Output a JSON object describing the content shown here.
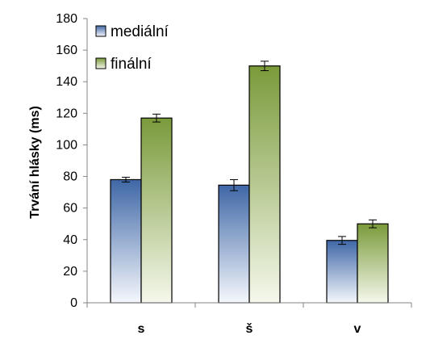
{
  "chart_data": {
    "type": "bar",
    "title": "",
    "xlabel": "",
    "ylabel": "Trvání hlásky (ms)",
    "ylim": [
      0,
      180
    ],
    "yticks": [
      0,
      20,
      40,
      60,
      80,
      100,
      120,
      140,
      160,
      180
    ],
    "categories": [
      "s",
      "š",
      "v"
    ],
    "series": [
      {
        "name": "mediální",
        "values": [
          78,
          74.5,
          39.5
        ],
        "errors": [
          1.5,
          3.5,
          2.5
        ]
      },
      {
        "name": "finální",
        "values": [
          117,
          150,
          50
        ],
        "errors": [
          2.5,
          3,
          2.5
        ]
      }
    ],
    "error_bars": true,
    "grid": false,
    "legend_position": "top-left",
    "colors": {
      "mediální": {
        "top": "#3F67A6",
        "bottom": "#F4F7FC"
      },
      "finální": {
        "top": "#7A9A3A",
        "bottom": "#F5F8EC"
      }
    }
  }
}
